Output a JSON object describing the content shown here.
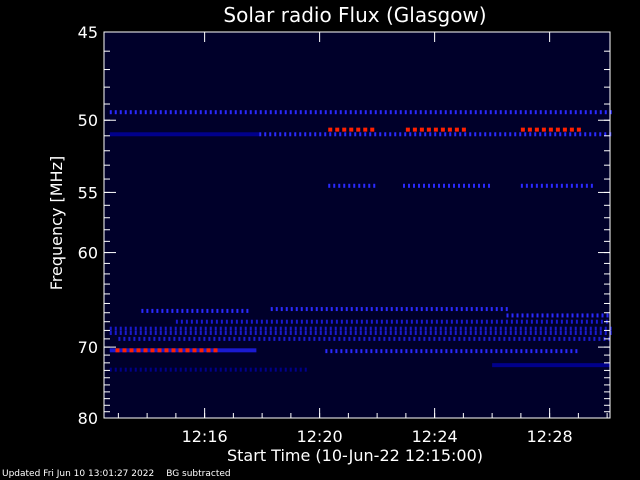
{
  "chart_data": {
    "type": "heatmap",
    "title": "Solar radio Flux (Glasgow)",
    "xlabel": "Start Time (10-Jun-22 12:15:00)",
    "ylabel": "Frequency [MHz]",
    "x_range_minutes": [
      12.5,
      30.1
    ],
    "x_ticks": [
      {
        "label": "12:16",
        "value": 16
      },
      {
        "label": "12:20",
        "value": 20
      },
      {
        "label": "12:24",
        "value": 24
      },
      {
        "label": "12:28",
        "value": 28
      }
    ],
    "y_range_mhz": [
      45,
      80
    ],
    "y_scale": "reciprocal",
    "y_ticks": [
      {
        "label": "45",
        "value": 45
      },
      {
        "label": "50",
        "value": 50
      },
      {
        "label": "55",
        "value": 55
      },
      {
        "label": "60",
        "value": 60
      },
      {
        "label": "70",
        "value": 70
      },
      {
        "label": "80",
        "value": 80
      }
    ],
    "colors": {
      "background": "#000000",
      "low": "#00008b",
      "mid": "#2a2aff",
      "high": "#ff2000"
    },
    "bands": [
      {
        "freq": 49.5,
        "start": 12.7,
        "end": 30.1,
        "intensity": 0.7,
        "dashed": true
      },
      {
        "freq": 50.9,
        "start": 12.7,
        "end": 17.9,
        "intensity": 0.25,
        "dashed": false
      },
      {
        "freq": 50.9,
        "start": 17.9,
        "end": 30.1,
        "intensity": 0.75,
        "dashed": true
      },
      {
        "freq": 50.6,
        "start": 20.3,
        "end": 22.0,
        "intensity": 1.0,
        "dashed": true
      },
      {
        "freq": 50.6,
        "start": 23.0,
        "end": 25.0,
        "intensity": 1.0,
        "dashed": true
      },
      {
        "freq": 50.6,
        "start": 27.0,
        "end": 29.0,
        "intensity": 1.0,
        "dashed": true
      },
      {
        "freq": 54.5,
        "start": 20.3,
        "end": 22.0,
        "intensity": 0.8,
        "dashed": true
      },
      {
        "freq": 54.5,
        "start": 22.9,
        "end": 26.0,
        "intensity": 0.8,
        "dashed": true
      },
      {
        "freq": 54.5,
        "start": 27.0,
        "end": 29.6,
        "intensity": 0.8,
        "dashed": true
      },
      {
        "freq": 65.8,
        "start": 13.8,
        "end": 17.5,
        "intensity": 0.6,
        "dashed": true
      },
      {
        "freq": 65.6,
        "start": 18.3,
        "end": 26.5,
        "intensity": 0.7,
        "dashed": true
      },
      {
        "freq": 66.3,
        "start": 26.5,
        "end": 30.1,
        "intensity": 0.6,
        "dashed": true
      },
      {
        "freq": 67.0,
        "start": 15.0,
        "end": 30.1,
        "intensity": 0.5,
        "dashed": true
      },
      {
        "freq": 67.8,
        "start": 12.7,
        "end": 30.1,
        "intensity": 0.45,
        "dashed": true
      },
      {
        "freq": 68.3,
        "start": 12.7,
        "end": 30.1,
        "intensity": 0.5,
        "dashed": true
      },
      {
        "freq": 69.0,
        "start": 13.0,
        "end": 30.1,
        "intensity": 0.45,
        "dashed": true
      },
      {
        "freq": 70.4,
        "start": 12.7,
        "end": 17.8,
        "intensity": 0.55,
        "dashed": false
      },
      {
        "freq": 70.5,
        "start": 20.2,
        "end": 29.0,
        "intensity": 0.6,
        "dashed": true
      },
      {
        "freq": 70.4,
        "start": 12.9,
        "end": 16.4,
        "intensity": 1.0,
        "dashed": true
      },
      {
        "freq": 72.3,
        "start": 26.0,
        "end": 30.1,
        "intensity": 0.35,
        "dashed": false
      },
      {
        "freq": 72.9,
        "start": 12.7,
        "end": 19.5,
        "intensity": 0.3,
        "dashed": true
      }
    ]
  },
  "footer": {
    "updated": "Updated Fri Jun 10 13:01:27 2022",
    "note": "BG subtracted"
  }
}
